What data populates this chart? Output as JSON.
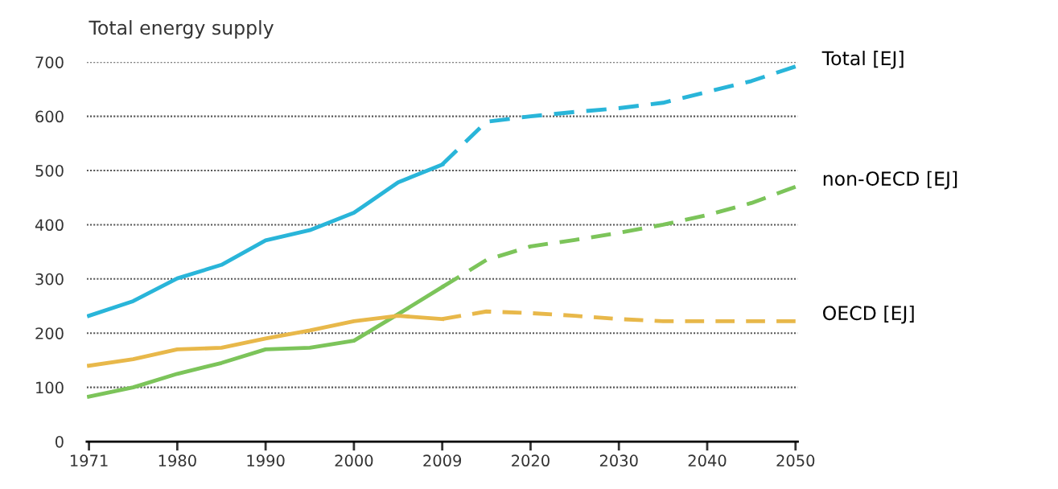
{
  "chart_data": {
    "type": "line",
    "title": "Total energy supply",
    "categories": [
      "1971",
      null,
      "1980",
      null,
      "1990",
      null,
      "2000",
      null,
      "2009",
      null,
      "2020",
      null,
      "2030",
      null,
      "2040",
      null,
      "2050"
    ],
    "series": [
      {
        "color": "#29b5d9",
        "line_style": "solid",
        "values": [
          232,
          259,
          301,
          326,
          371,
          390,
          422,
          478,
          511,
          null,
          null,
          null,
          null,
          null,
          null,
          null,
          null
        ]
      },
      {
        "name": "Total [EJ]",
        "color": "#29b5d9",
        "line_style": "dashed",
        "values": [
          null,
          null,
          null,
          null,
          null,
          null,
          null,
          null,
          511,
          590,
          600,
          608,
          615,
          625,
          645,
          665,
          692
        ]
      },
      {
        "color": "#7cc45a",
        "line_style": "solid",
        "values": [
          83,
          100,
          125,
          145,
          170,
          173,
          186,
          235,
          285,
          null,
          null,
          null,
          null,
          null,
          null,
          null,
          null
        ]
      },
      {
        "name": "non-OECD [EJ]",
        "color": "#7cc45a",
        "line_style": "dashed",
        "values": [
          null,
          null,
          null,
          null,
          null,
          null,
          null,
          null,
          285,
          335,
          360,
          372,
          385,
          400,
          418,
          440,
          470
        ]
      },
      {
        "color": "#e8b84a",
        "line_style": "solid",
        "values": [
          140,
          152,
          170,
          173,
          190,
          205,
          222,
          232,
          226,
          null,
          null,
          null,
          null,
          null,
          null,
          null,
          null
        ]
      },
      {
        "name": "OECD [EJ]",
        "color": "#e8b84a",
        "line_style": "dashed",
        "values": [
          null,
          null,
          null,
          null,
          null,
          null,
          null,
          null,
          226,
          240,
          237,
          232,
          226,
          222,
          222,
          222,
          222
        ]
      }
    ],
    "ylim": [
      0,
      700
    ],
    "yticks": [
      0,
      100,
      200,
      300,
      400,
      500,
      600,
      700
    ],
    "grid": "y",
    "legend": false
  }
}
